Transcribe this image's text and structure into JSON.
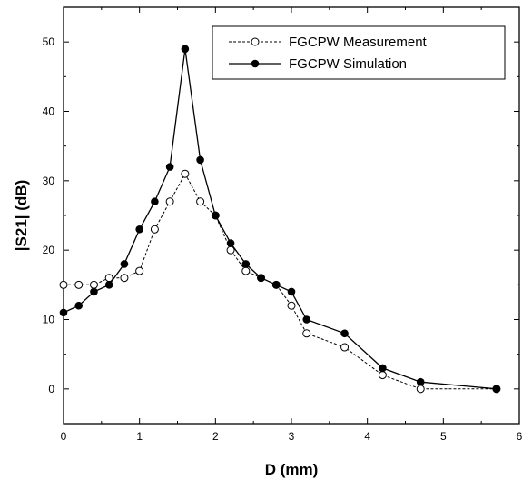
{
  "chart_data": {
    "type": "line",
    "xlabel": "D (mm)",
    "ylabel": "|S21| (dB)",
    "xlim": [
      0,
      6
    ],
    "ylim": [
      -5,
      55
    ],
    "xticks": [
      0,
      1,
      2,
      3,
      4,
      5,
      6
    ],
    "yticks": [
      0,
      10,
      20,
      30,
      40,
      50
    ],
    "grid": false,
    "legend_position": "top-right",
    "series": [
      {
        "name": "FGCPW Measurement",
        "marker": "open-circle",
        "line": "dashed",
        "color": "#000000",
        "x": [
          0,
          0.2,
          0.4,
          0.6,
          0.8,
          1.0,
          1.2,
          1.4,
          1.6,
          1.8,
          2.0,
          2.2,
          2.4,
          2.6,
          2.8,
          3.0,
          3.2,
          3.7,
          4.2,
          4.7,
          5.7
        ],
        "y": [
          15,
          15,
          15,
          16,
          16,
          17,
          23,
          27,
          31,
          27,
          25,
          20,
          17,
          16,
          15,
          12,
          8,
          6,
          2,
          0,
          0
        ]
      },
      {
        "name": "FGCPW Simulation",
        "marker": "filled-circle",
        "line": "solid",
        "color": "#000000",
        "x": [
          0,
          0.2,
          0.4,
          0.6,
          0.8,
          1.0,
          1.2,
          1.4,
          1.6,
          1.8,
          2.0,
          2.2,
          2.4,
          2.6,
          2.8,
          3.0,
          3.2,
          3.7,
          4.2,
          4.7,
          5.7
        ],
        "y": [
          11,
          12,
          14,
          15,
          18,
          23,
          27,
          32,
          49,
          33,
          25,
          21,
          18,
          16,
          15,
          14,
          10,
          8,
          3,
          1,
          0
        ]
      }
    ]
  }
}
